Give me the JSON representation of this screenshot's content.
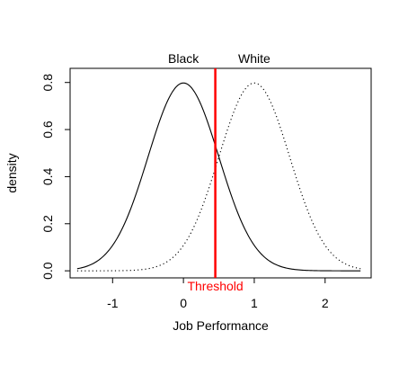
{
  "chart_data": {
    "type": "line",
    "xlabel": "Job Performance",
    "ylabel": "density",
    "xlim": [
      -1.6,
      2.65
    ],
    "ylim": [
      -0.03,
      0.86
    ],
    "x_ticks": [
      -1,
      0,
      1,
      2
    ],
    "y_ticks": [
      0.0,
      0.2,
      0.4,
      0.6,
      0.8
    ],
    "x_tick_labels": [
      "-1",
      "0",
      "1",
      "2"
    ],
    "y_tick_labels": [
      "0.0",
      "0.2",
      "0.4",
      "0.6",
      "0.8"
    ],
    "series": [
      {
        "name": "Black",
        "distribution": "normal",
        "mean": 0,
        "sd": 0.5,
        "x_range": [
          -1.5,
          2.5
        ],
        "line_style": "solid",
        "color": "#000000"
      },
      {
        "name": "White",
        "distribution": "normal",
        "mean": 1,
        "sd": 0.5,
        "x_range": [
          -1.5,
          2.5
        ],
        "line_style": "dotted",
        "color": "#000000"
      }
    ],
    "threshold": {
      "x": 0.45,
      "label": "Threshold",
      "color": "#ff0000"
    },
    "grid": false,
    "legend": "none"
  }
}
